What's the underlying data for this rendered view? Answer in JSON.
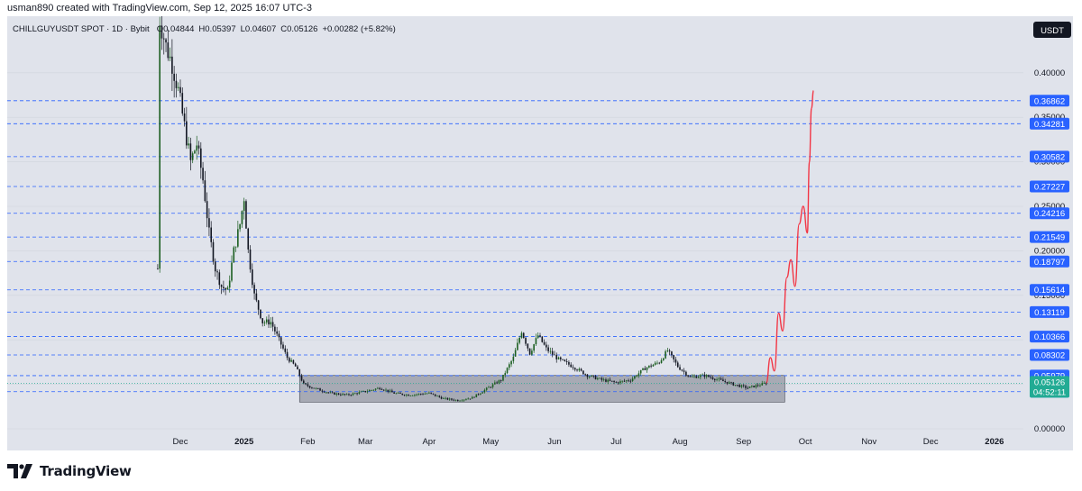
{
  "caption": "usman890 created with TradingView.com, Sep 12, 2025 16:07 UTC-3",
  "brand": "TradingView",
  "colors": {
    "background": "#e0e3eb",
    "bull": "#1b5e20",
    "bear": "#131722",
    "level_line": "#2962ff",
    "projection": "#f23645",
    "range_box": "#787b86",
    "last_price": "#22ab94"
  },
  "chart_data": {
    "type": "candlestick",
    "title": "CHILLGUYUSDT SPOT · 1D · Bybit",
    "ohlc": {
      "open": "O0.04844",
      "high": "H0.05397",
      "low": "L0.04607",
      "close": "C0.05126",
      "change": "+0.00282 (+5.82%)"
    },
    "currency_button": "USDT",
    "y_ticks": [
      "0.40000",
      "0.35000",
      "0.30000",
      "0.25000",
      "0.20000",
      "0.15000",
      "0.10000",
      "0.05000",
      "0.00000"
    ],
    "x_ticks": [
      "Dec",
      "2025",
      "Feb",
      "Mar",
      "Apr",
      "May",
      "Jun",
      "Jul",
      "Aug",
      "Sep",
      "Oct",
      "Nov",
      "Dec",
      "2026"
    ],
    "levels": [
      "0.36862",
      "0.34281",
      "0.30582",
      "0.27227",
      "0.24216",
      "0.21549",
      "0.18797",
      "0.15614",
      "0.13119",
      "0.10366",
      "0.08302",
      "0.05979",
      "0.04172"
    ],
    "last_price": "0.05126",
    "countdown": "04:52:11",
    "range_box": {
      "low": 0.03,
      "high": 0.06,
      "from_date": "2025-01-28",
      "to_date": "2025-09-21"
    },
    "close_path": [
      [
        "2024-11-20",
        0.18
      ],
      [
        "2024-11-21",
        0.46
      ],
      [
        "2024-11-24",
        0.43
      ],
      [
        "2024-11-27",
        0.41
      ],
      [
        "2024-11-30",
        0.38
      ],
      [
        "2024-12-03",
        0.34
      ],
      [
        "2024-12-06",
        0.3
      ],
      [
        "2024-12-09",
        0.32
      ],
      [
        "2024-12-12",
        0.28
      ],
      [
        "2024-12-15",
        0.22
      ],
      [
        "2024-12-18",
        0.18
      ],
      [
        "2024-12-21",
        0.16
      ],
      [
        "2024-12-24",
        0.155
      ],
      [
        "2024-12-27",
        0.2
      ],
      [
        "2024-12-30",
        0.23
      ],
      [
        "2025-01-01",
        0.26
      ],
      [
        "2025-01-03",
        0.2
      ],
      [
        "2025-01-06",
        0.15
      ],
      [
        "2025-01-10",
        0.12
      ],
      [
        "2025-01-14",
        0.12
      ],
      [
        "2025-01-18",
        0.1
      ],
      [
        "2025-01-22",
        0.08
      ],
      [
        "2025-01-26",
        0.07
      ],
      [
        "2025-01-30",
        0.05
      ],
      [
        "2025-02-05",
        0.045
      ],
      [
        "2025-02-12",
        0.04
      ],
      [
        "2025-02-20",
        0.038
      ],
      [
        "2025-03-01",
        0.042
      ],
      [
        "2025-03-08",
        0.046
      ],
      [
        "2025-03-15",
        0.04
      ],
      [
        "2025-03-22",
        0.038
      ],
      [
        "2025-04-01",
        0.04
      ],
      [
        "2025-04-08",
        0.034
      ],
      [
        "2025-04-15",
        0.032
      ],
      [
        "2025-04-22",
        0.035
      ],
      [
        "2025-04-29",
        0.045
      ],
      [
        "2025-05-06",
        0.055
      ],
      [
        "2025-05-12",
        0.08
      ],
      [
        "2025-05-16",
        0.11
      ],
      [
        "2025-05-20",
        0.085
      ],
      [
        "2025-05-24",
        0.105
      ],
      [
        "2025-05-28",
        0.09
      ],
      [
        "2025-06-03",
        0.078
      ],
      [
        "2025-06-10",
        0.07
      ],
      [
        "2025-06-17",
        0.06
      ],
      [
        "2025-06-24",
        0.055
      ],
      [
        "2025-07-01",
        0.052
      ],
      [
        "2025-07-08",
        0.055
      ],
      [
        "2025-07-15",
        0.068
      ],
      [
        "2025-07-22",
        0.075
      ],
      [
        "2025-07-26",
        0.088
      ],
      [
        "2025-07-31",
        0.07
      ],
      [
        "2025-08-06",
        0.058
      ],
      [
        "2025-08-13",
        0.06
      ],
      [
        "2025-08-20",
        0.055
      ],
      [
        "2025-08-27",
        0.05
      ],
      [
        "2025-09-03",
        0.046
      ],
      [
        "2025-09-08",
        0.049
      ],
      [
        "2025-09-12",
        0.05126
      ]
    ],
    "projection_path": [
      [
        "2025-09-12",
        0.05126
      ],
      [
        "2025-09-14",
        0.08
      ],
      [
        "2025-09-16",
        0.065
      ],
      [
        "2025-09-18",
        0.13
      ],
      [
        "2025-09-20",
        0.11
      ],
      [
        "2025-09-22",
        0.17
      ],
      [
        "2025-09-24",
        0.19
      ],
      [
        "2025-09-26",
        0.16
      ],
      [
        "2025-09-28",
        0.23
      ],
      [
        "2025-09-30",
        0.25
      ],
      [
        "2025-10-02",
        0.22
      ],
      [
        "2025-10-03",
        0.3
      ],
      [
        "2025-10-04",
        0.36
      ],
      [
        "2025-10-05",
        0.38
      ]
    ]
  }
}
